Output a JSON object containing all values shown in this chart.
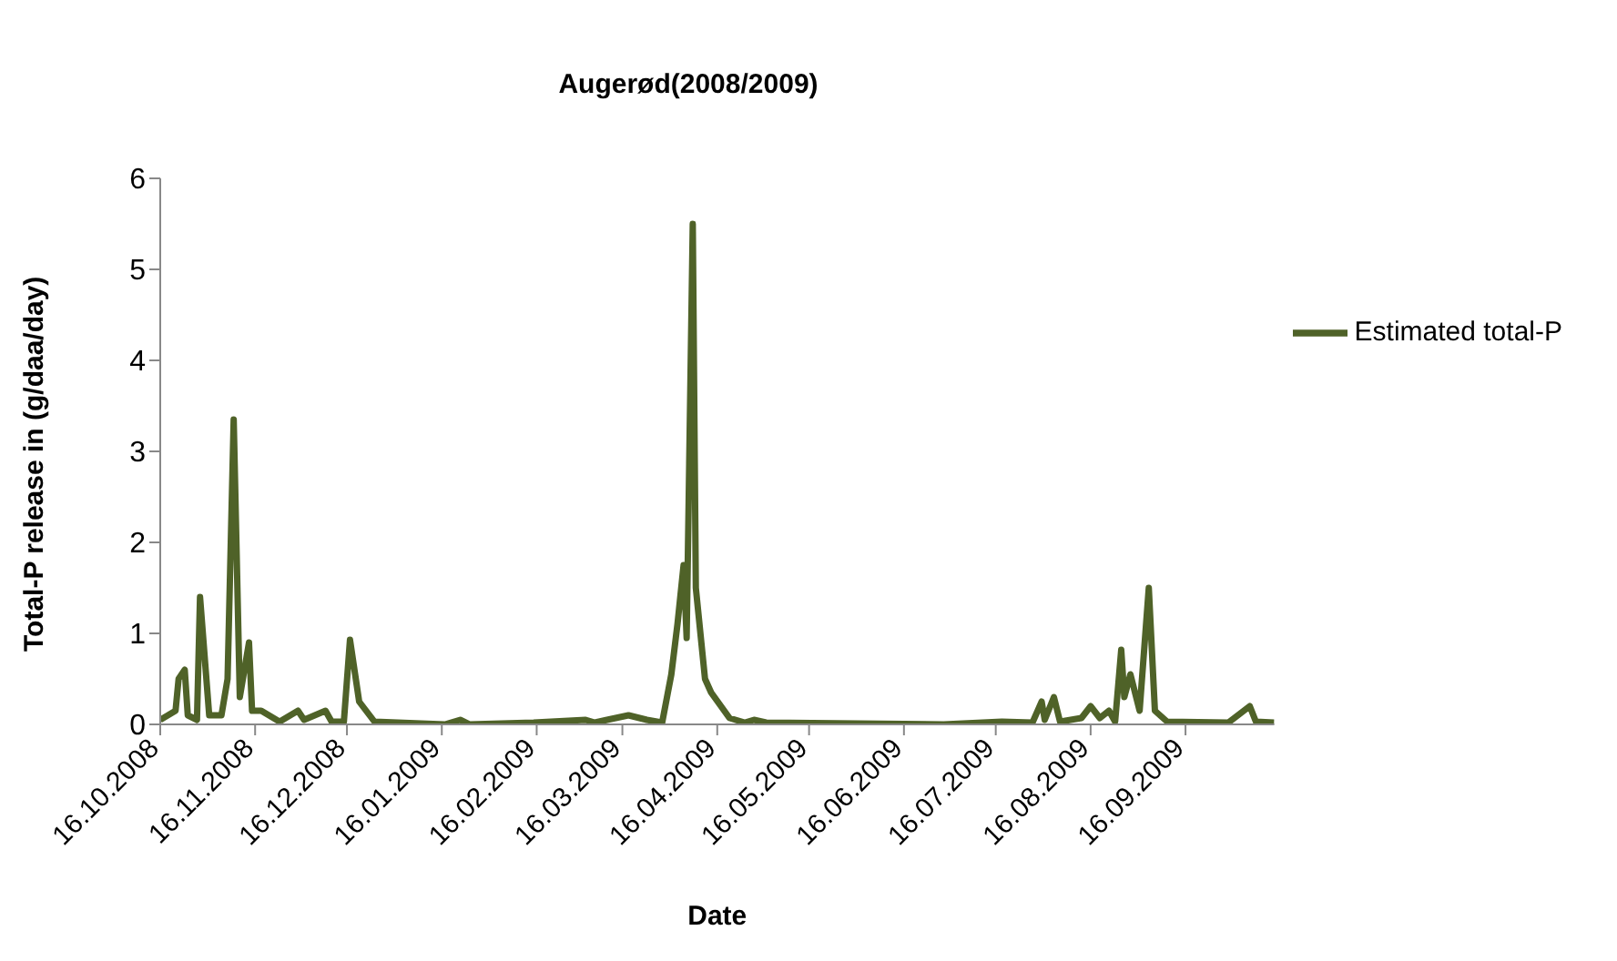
{
  "chart_data": {
    "type": "line",
    "title": "Augerød(2008/2009)",
    "xlabel": "Date",
    "ylabel": "Total-P release in (g/daa/day)",
    "x": [
      "2008-10-16",
      "2008-10-21",
      "2008-10-22",
      "2008-10-24",
      "2008-10-25",
      "2008-10-28",
      "2008-10-29",
      "2008-11-01",
      "2008-11-05",
      "2008-11-07",
      "2008-11-09",
      "2008-11-11",
      "2008-11-14",
      "2008-11-15",
      "2008-11-18",
      "2008-11-24",
      "2008-11-30",
      "2008-12-02",
      "2008-12-09",
      "2008-12-11",
      "2008-12-15",
      "2008-12-17",
      "2008-12-20",
      "2008-12-25",
      "2009-01-17",
      "2009-01-22",
      "2009-01-25",
      "2009-02-15",
      "2009-03-04",
      "2009-03-07",
      "2009-03-11",
      "2009-03-18",
      "2009-03-24",
      "2009-03-29",
      "2009-04-01",
      "2009-04-03",
      "2009-04-05",
      "2009-04-06",
      "2009-04-08",
      "2009-04-09",
      "2009-04-12",
      "2009-04-14",
      "2009-04-20",
      "2009-04-25",
      "2009-04-28",
      "2009-05-02",
      "2009-06-29",
      "2009-07-18",
      "2009-07-28",
      "2009-07-31",
      "2009-08-01",
      "2009-08-04",
      "2009-08-06",
      "2009-08-13",
      "2009-08-16",
      "2009-08-19",
      "2009-08-22",
      "2009-08-24",
      "2009-08-26",
      "2009-08-27",
      "2009-08-29",
      "2009-09-01",
      "2009-09-04",
      "2009-09-06",
      "2009-09-10",
      "2009-09-30",
      "2009-10-07",
      "2009-10-09",
      "2009-10-15"
    ],
    "series": [
      {
        "name": "Estimated total-P",
        "color": "#4f6228",
        "values": [
          0.05,
          0.15,
          0.5,
          0.6,
          0.1,
          0.05,
          1.4,
          0.1,
          0.1,
          0.5,
          3.35,
          0.3,
          0.9,
          0.15,
          0.15,
          0.03,
          0.15,
          0.05,
          0.15,
          0.03,
          0.03,
          0.93,
          0.25,
          0.03,
          0,
          0.05,
          0,
          0.02,
          0.05,
          0.02,
          0.05,
          0.1,
          0.05,
          0.02,
          0.55,
          1.1,
          1.75,
          0.95,
          5.5,
          1.5,
          0.5,
          0.35,
          0.07,
          0.02,
          0.05,
          0.02,
          0,
          0.03,
          0.02,
          0.25,
          0.05,
          0.3,
          0.03,
          0.07,
          0.2,
          0.07,
          0.15,
          0.03,
          0.82,
          0.3,
          0.55,
          0.15,
          1.5,
          0.15,
          0.03,
          0.02,
          0.2,
          0.03,
          0.02
        ]
      }
    ],
    "xlim": [
      "2008-10-16",
      "2009-10-15"
    ],
    "xticks": [
      {
        "value": "2008-10-16",
        "label": "16.10.2008"
      },
      {
        "value": "2008-11-16",
        "label": "16.11.2008"
      },
      {
        "value": "2008-12-16",
        "label": "16.12.2008"
      },
      {
        "value": "2009-01-16",
        "label": "16.01.2009"
      },
      {
        "value": "2009-02-16",
        "label": "16.02.2009"
      },
      {
        "value": "2009-03-16",
        "label": "16.03.2009"
      },
      {
        "value": "2009-04-16",
        "label": "16.04.2009"
      },
      {
        "value": "2009-05-16",
        "label": "16.05.2009"
      },
      {
        "value": "2009-06-16",
        "label": "16.06.2009"
      },
      {
        "value": "2009-07-16",
        "label": "16.07.2009"
      },
      {
        "value": "2009-08-16",
        "label": "16.08.2009"
      },
      {
        "value": "2009-09-16",
        "label": "16.09.2009"
      }
    ],
    "ylim": [
      0,
      6
    ],
    "yticks": [
      0,
      1,
      2,
      3,
      4,
      5,
      6
    ],
    "grid": false,
    "legend": "right",
    "marker": "none",
    "line_style": "solid"
  }
}
